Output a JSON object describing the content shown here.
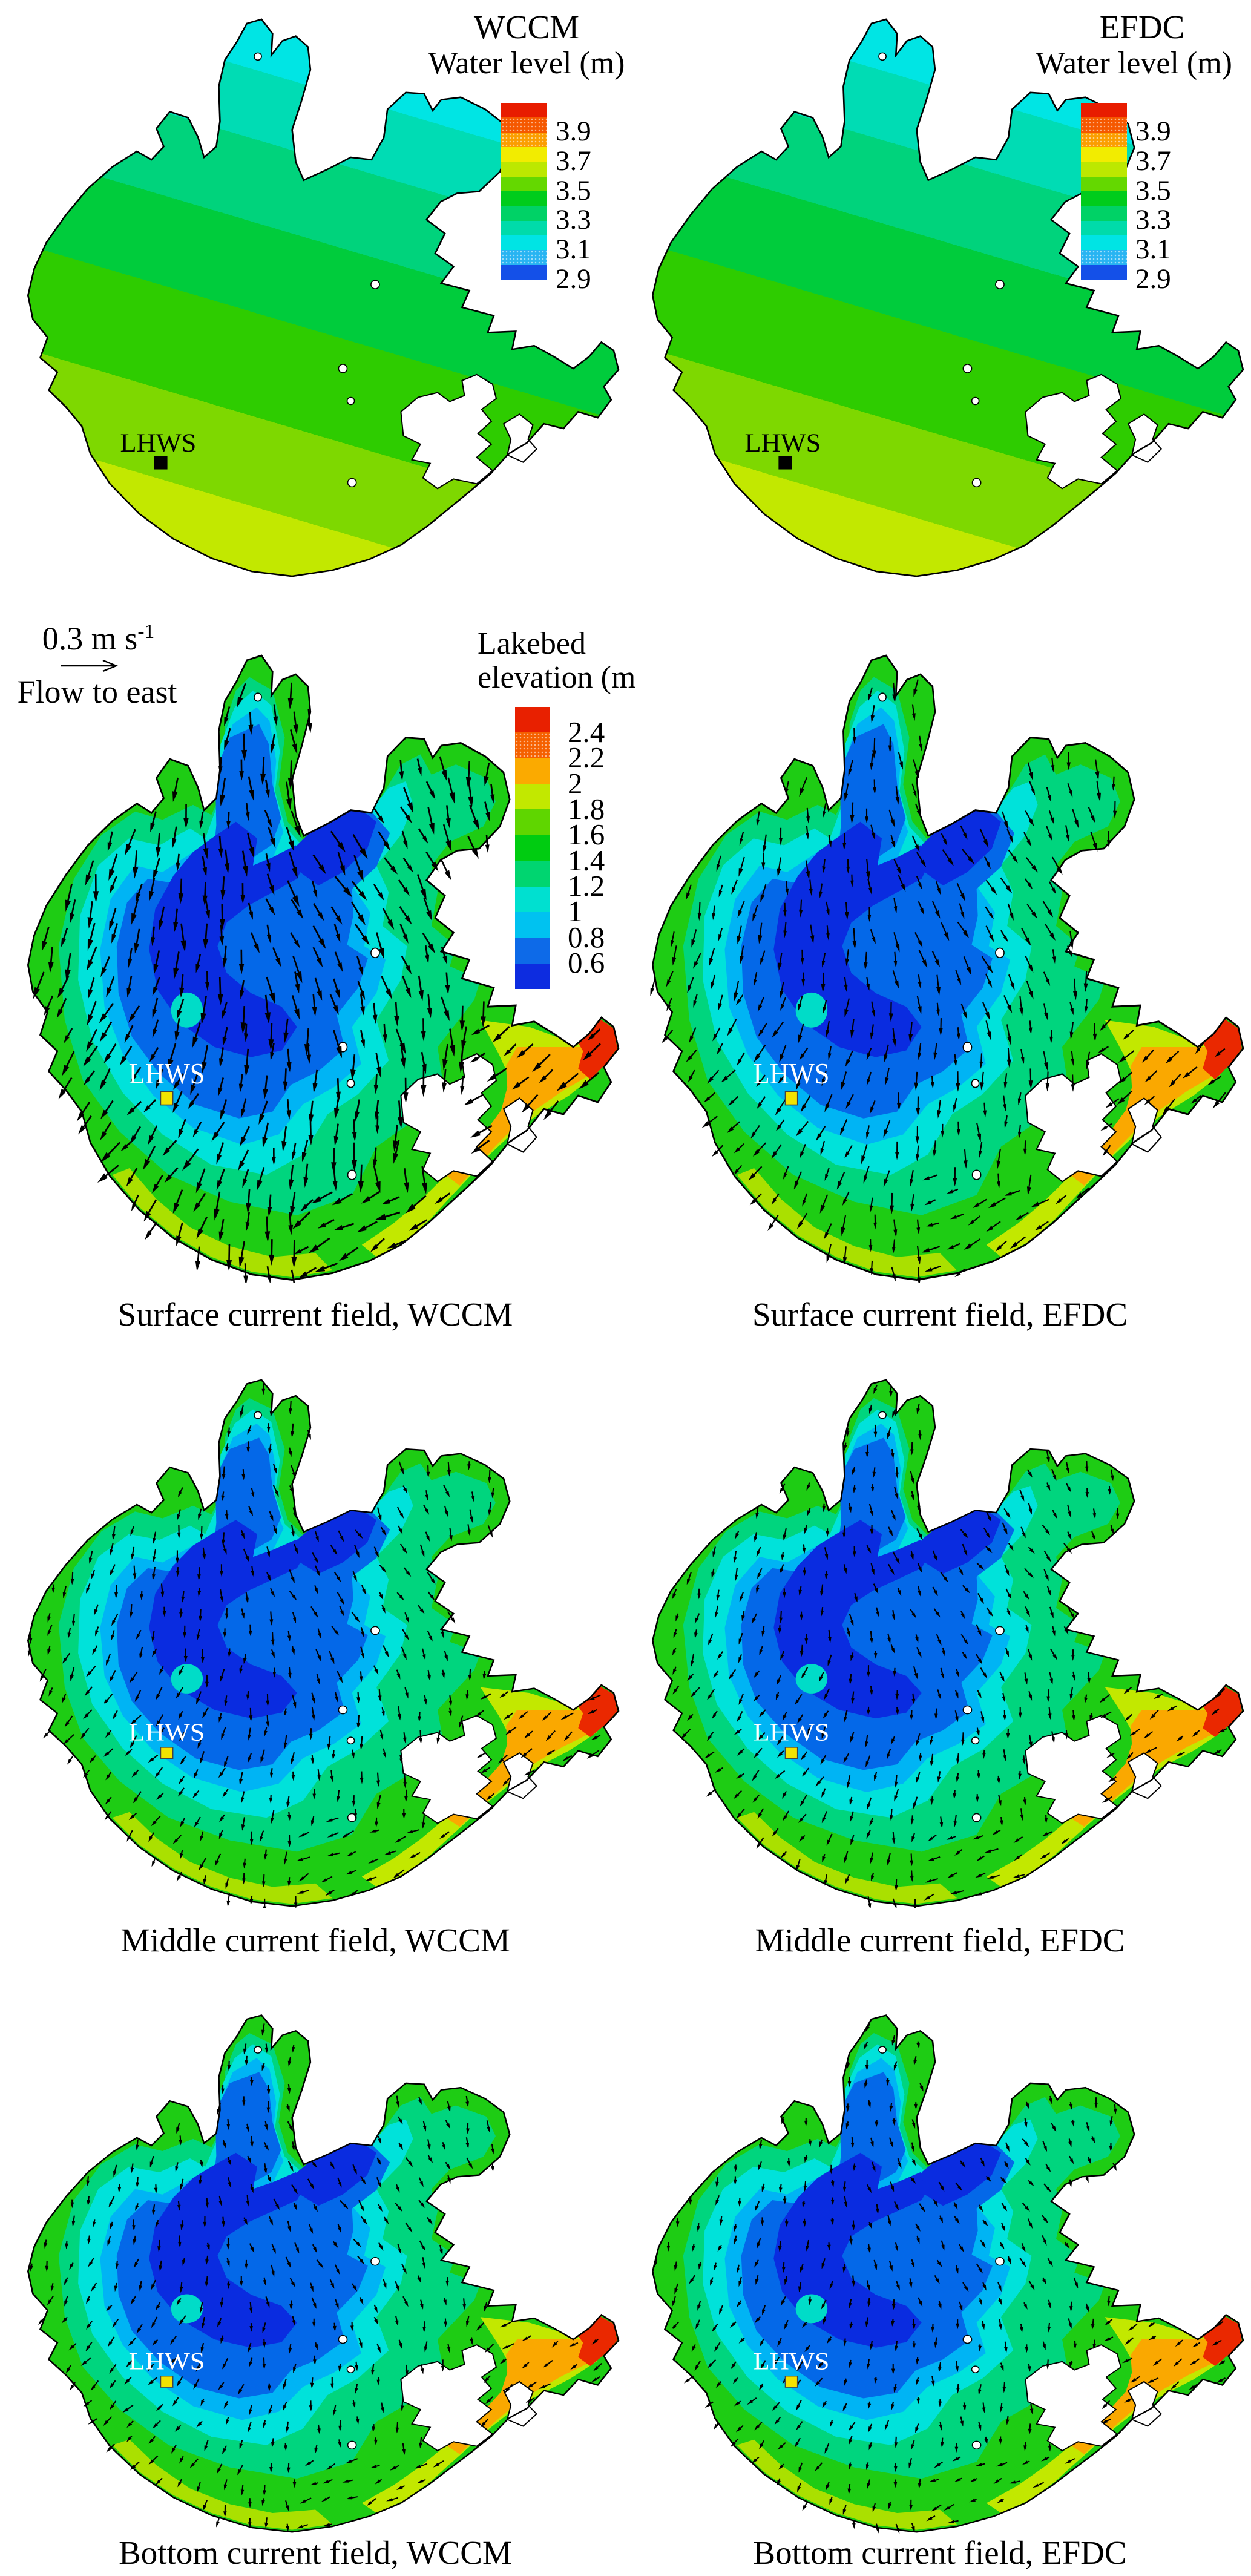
{
  "station_label": "LHWS",
  "titles": {
    "wccm": "WCCM",
    "efdc": "EFDC",
    "water_level": "Water level (m)"
  },
  "elevation_legend": {
    "line1": "Lakebed",
    "line2": "elevation (m"
  },
  "legend": {
    "speed": "0.3 m s",
    "exp": "-1",
    "flow": "Flow to east"
  },
  "captions": [
    "Surface current field, WCCM",
    "Surface current field, EFDC",
    "Middle current field, WCCM",
    "Middle current field, EFDC",
    "Bottom current field, WCCM",
    "Bottom current field, EFDC"
  ],
  "colorbars": {
    "water_level": {
      "ticks": [
        "3.9",
        "3.7",
        "3.5",
        "3.3",
        "3.1",
        "2.9"
      ],
      "colors": [
        "#e81c00",
        "#f55800",
        "#fb9e00",
        "#f2ec00",
        "#bce800",
        "#64d800",
        "#00cc1c",
        "#00d266",
        "#00dbaa",
        "#00e4e4",
        "#28b4f2",
        "#1450e8"
      ],
      "dotted": [
        1,
        2,
        10
      ]
    },
    "lakebed_elevation": {
      "ticks": [
        "2.4",
        "2.2",
        "2",
        "1.8",
        "1.6",
        "1.4",
        "1.2",
        "1",
        "0.8",
        "0.6"
      ],
      "colors": [
        "#e82000",
        "#f56000",
        "#fbaa00",
        "#c2e800",
        "#5fd600",
        "#00cc11",
        "#00d570",
        "#00e0d0",
        "#00c2f0",
        "#0d6ae8",
        "#0d2ce0"
      ],
      "dotted": [
        1
      ]
    }
  },
  "chart_data": [
    {
      "panel": "row1-left",
      "type": "heatmap",
      "model": "WCCM",
      "variable": "Water level (m)",
      "colorbar_ticks": [
        3.9,
        3.7,
        3.5,
        3.3,
        3.1,
        2.9
      ],
      "value_range": [
        2.9,
        4.1
      ],
      "pattern": "water level ~3.7 m (yellow) along the southwest shore decreasing to ~2.9-3.1 m (cyan-blue) in the north and northeast bays; smooth WNW-ESE trending contour bands",
      "station": {
        "name": "LHWS",
        "marker": "black square",
        "position": "southwest basin"
      }
    },
    {
      "panel": "row1-right",
      "type": "heatmap",
      "model": "EFDC",
      "variable": "Water level (m)",
      "colorbar_ticks": [
        3.9,
        3.7,
        3.5,
        3.3,
        3.1,
        2.9
      ],
      "value_range": [
        2.9,
        4.1
      ],
      "pattern": "distribution nearly identical to the WCCM water-level panel",
      "station": {
        "name": "LHWS",
        "marker": "black square",
        "position": "southwest basin"
      }
    },
    {
      "panel": "row2-left",
      "type": "vector_field",
      "layer": "surface",
      "model": "WCCM",
      "caption": "Surface current field, WCCM",
      "reference_vector": {
        "label": "0.3 m s-1",
        "note": "Flow to east"
      },
      "background": {
        "variable": "Lakebed elevation (m)",
        "colorbar_ticks": [
          2.4,
          2.2,
          2.0,
          1.8,
          1.6,
          1.4,
          1.2,
          1.0,
          0.8,
          0.6
        ],
        "pattern": "dark-blue deep basin (<0.8 m) in the center-west, cyan ring, green shallow margins, yellow-orange-red southeast bay (>2 m)"
      },
      "currents": "long dense black arrows, predominantly southward over the main basin, southwestward along the southeast bay",
      "station": {
        "name": "LHWS",
        "marker": "yellow square"
      }
    },
    {
      "panel": "row2-right",
      "type": "vector_field",
      "layer": "surface",
      "model": "EFDC",
      "caption": "Surface current field, EFDC",
      "currents": "similar southward pattern with somewhat shorter arrows than WCCM",
      "station": {
        "name": "LHWS",
        "marker": "yellow square"
      }
    },
    {
      "panel": "row3-left",
      "type": "vector_field",
      "layer": "middle",
      "model": "WCCM",
      "caption": "Middle current field, WCCM",
      "currents": "short weak arrows, mainly southward with local swirls",
      "station": {
        "name": "LHWS",
        "marker": "yellow square"
      }
    },
    {
      "panel": "row3-right",
      "type": "vector_field",
      "layer": "middle",
      "model": "EFDC",
      "caption": "Middle current field, EFDC",
      "currents": "short weak arrows, similar to the WCCM middle layer",
      "station": {
        "name": "LHWS",
        "marker": "yellow square"
      }
    },
    {
      "panel": "row4-left",
      "type": "vector_field",
      "layer": "bottom",
      "model": "WCCM",
      "caption": "Bottom current field, WCCM",
      "currents": "shortest arrows, weak near-bed flow, mainly southward",
      "station": {
        "name": "LHWS",
        "marker": "yellow square"
      }
    },
    {
      "panel": "row4-right",
      "type": "vector_field",
      "layer": "bottom",
      "model": "EFDC",
      "caption": "Bottom current field, EFDC",
      "currents": "shortest arrows, weak near-bed flow, similar to WCCM",
      "station": {
        "name": "LHWS",
        "marker": "yellow square"
      }
    }
  ]
}
